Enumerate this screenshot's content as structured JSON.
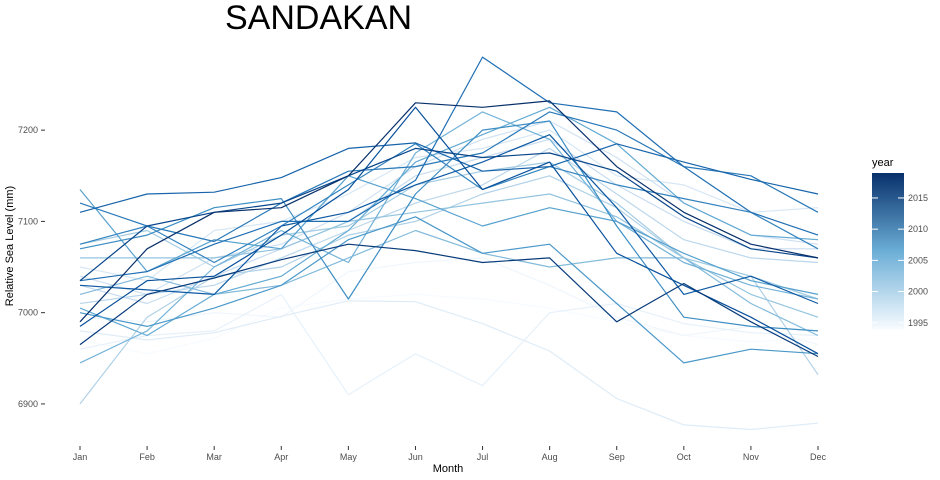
{
  "chart_data": {
    "type": "line",
    "title": "SANDAKAN",
    "xlabel": "Month",
    "ylabel": "Relative Sea Level (mm)",
    "categories": [
      "Jan",
      "Feb",
      "Mar",
      "Apr",
      "May",
      "Jun",
      "Jul",
      "Aug",
      "Sep",
      "Oct",
      "Nov",
      "Dec"
    ],
    "ylim": [
      6855,
      7290
    ],
    "yticks": [
      6900,
      7000,
      7100,
      7200
    ],
    "grid": false,
    "legend": {
      "title": "year",
      "position": "right",
      "min": 1994,
      "max": 2019,
      "ticks": [
        1995,
        2000,
        2005,
        2010,
        2015
      ],
      "color_low": "#f7fbff",
      "color_high": "#08306b"
    },
    "series": [
      {
        "year": 1994,
        "values": [
          6970,
          6955,
          6972,
          7005,
          7015,
          7020,
          7015,
          7005,
          6990,
          6975,
          6968,
          6972
        ]
      },
      {
        "year": 1995,
        "values": [
          6995,
          6990,
          7000,
          6995,
          7045,
          7055,
          7060,
          7030,
          6995,
          6975,
          6985,
          6965
        ]
      },
      {
        "year": 1996,
        "values": [
          6960,
          6975,
          6980,
          7020,
          6910,
          6955,
          6920,
          7000,
          7010,
          6988,
          6978,
          6975
        ]
      },
      {
        "year": 1997,
        "values": [
          6980,
          6970,
          6978,
          6996,
          7013,
          7012,
          6988,
          6958,
          6906,
          6877,
          6872,
          6879
        ]
      },
      {
        "year": 1998,
        "values": [
          7050,
          7035,
          7090,
          7100,
          7130,
          7170,
          7180,
          7200,
          7150,
          7140,
          7110,
          7115
        ]
      },
      {
        "year": 1999,
        "values": [
          7040,
          7020,
          7060,
          7075,
          7110,
          7160,
          7190,
          7210,
          7170,
          7120,
          7085,
          7075
        ]
      },
      {
        "year": 2000,
        "values": [
          7030,
          7010,
          7040,
          7070,
          7100,
          7150,
          7170,
          7190,
          7140,
          7100,
          7070,
          7070
        ]
      },
      {
        "year": 2001,
        "values": [
          7010,
          7020,
          7030,
          7060,
          7090,
          7120,
          7140,
          7180,
          7130,
          7080,
          7060,
          7055
        ]
      },
      {
        "year": 2002,
        "values": [
          6900,
          6995,
          7040,
          7050,
          7085,
          7100,
          7130,
          7150,
          7115,
          7060,
          7040,
          6932
        ]
      },
      {
        "year": 2003,
        "values": [
          7075,
          7090,
          7050,
          7085,
          7095,
          7140,
          7155,
          7165,
          7120,
          7060,
          7040,
          7015
        ]
      },
      {
        "year": 2004,
        "values": [
          7060,
          7060,
          7060,
          7070,
          7100,
          7110,
          7120,
          7130,
          7105,
          7060,
          7020,
          6995
        ]
      },
      {
        "year": 2005,
        "values": [
          7020,
          7040,
          7020,
          7030,
          7060,
          7090,
          7065,
          7050,
          7060,
          7060,
          7010,
          6975
        ]
      },
      {
        "year": 2006,
        "values": [
          6945,
          6980,
          7050,
          7090,
          7055,
          7175,
          7220,
          7190,
          7100,
          7055,
          7030,
          7015
        ]
      },
      {
        "year": 2007,
        "values": [
          7005,
          6975,
          7020,
          7040,
          7090,
          7165,
          7195,
          7225,
          7185,
          7120,
          7085,
          7080
        ]
      },
      {
        "year": 2008,
        "values": [
          7135,
          7045,
          7080,
          7070,
          7150,
          7125,
          7095,
          7115,
          7100,
          7065,
          7035,
          7020
        ]
      },
      {
        "year": 2009,
        "values": [
          7000,
          6985,
          7005,
          7030,
          7080,
          7105,
          7065,
          7075,
          7010,
          6945,
          6960,
          6955
        ]
      },
      {
        "year": 2010,
        "values": [
          7070,
          7085,
          7115,
          7125,
          7015,
          7130,
          7200,
          7210,
          7095,
          6995,
          6985,
          6980
        ]
      },
      {
        "year": 2011,
        "values": [
          7075,
          7095,
          7055,
          7095,
          7140,
          7185,
          7135,
          7160,
          7140,
          7125,
          7110,
          7070
        ]
      },
      {
        "year": 2012,
        "values": [
          7120,
          7095,
          7078,
          7120,
          7155,
          7160,
          7175,
          7220,
          7200,
          7160,
          7150,
          7110
        ]
      },
      {
        "year": 2013,
        "values": [
          7035,
          7045,
          7075,
          7100,
          7100,
          7145,
          7280,
          7230,
          7220,
          7160,
          7110,
          7085
        ]
      },
      {
        "year": 2014,
        "values": [
          7110,
          7130,
          7132,
          7148,
          7180,
          7186,
          7155,
          7160,
          7185,
          7165,
          7146,
          7130
        ]
      },
      {
        "year": 2015,
        "values": [
          7030,
          7025,
          7020,
          7095,
          7110,
          7140,
          7165,
          7195,
          7115,
          7020,
          7040,
          7010
        ]
      },
      {
        "year": 2016,
        "values": [
          6985,
          7035,
          7040,
          7085,
          7135,
          7225,
          7135,
          7165,
          7065,
          7030,
          6995,
          6955
        ]
      },
      {
        "year": 2017,
        "values": [
          7035,
          7095,
          7110,
          7120,
          7150,
          7180,
          7170,
          7175,
          7155,
          7105,
          7070,
          7060
        ]
      },
      {
        "year": 2018,
        "values": [
          6965,
          7020,
          7038,
          7058,
          7075,
          7068,
          7055,
          7060,
          6990,
          7032,
          6990,
          6952
        ]
      },
      {
        "year": 2019,
        "values": [
          6990,
          7070,
          7110,
          7115,
          7150,
          7230,
          7225,
          7232,
          7160,
          7110,
          7075,
          7060
        ]
      }
    ]
  }
}
